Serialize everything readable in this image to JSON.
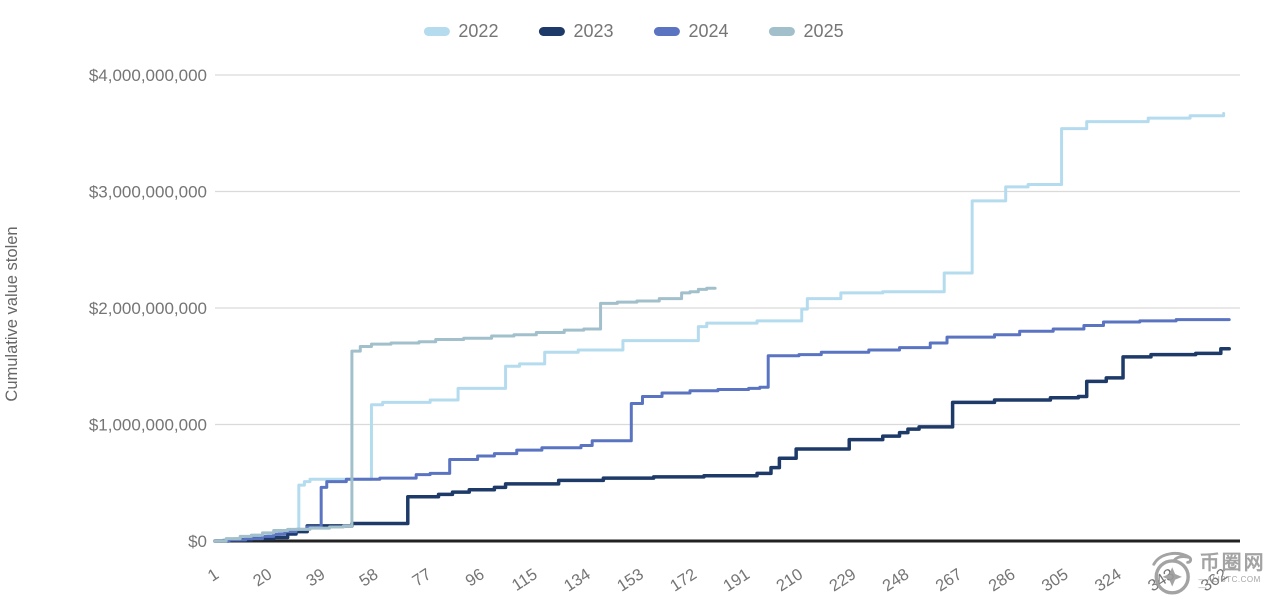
{
  "legend": {
    "items": [
      {
        "label": "2022",
        "color": "#b5dcee"
      },
      {
        "label": "2023",
        "color": "#1d3a68"
      },
      {
        "label": "2024",
        "color": "#5a74c2"
      },
      {
        "label": "2025",
        "color": "#a2c0cb"
      }
    ]
  },
  "y_axis": {
    "title": "Cumulative value stolen",
    "ticks": [
      {
        "label": "$4,000,000,000",
        "value": 4000000000
      },
      {
        "label": "$3,000,000,000",
        "value": 3000000000
      },
      {
        "label": "$2,000,000,000",
        "value": 2000000000
      },
      {
        "label": "$1,000,000,000",
        "value": 1000000000
      },
      {
        "label": "$0",
        "value": 0
      }
    ]
  },
  "x_axis": {
    "ticks": [
      {
        "label": "1",
        "day": 1
      },
      {
        "label": "20",
        "day": 20
      },
      {
        "label": "39",
        "day": 39
      },
      {
        "label": "58",
        "day": 58
      },
      {
        "label": "77",
        "day": 77
      },
      {
        "label": "96",
        "day": 96
      },
      {
        "label": "115",
        "day": 115
      },
      {
        "label": "134",
        "day": 134
      },
      {
        "label": "153",
        "day": 153
      },
      {
        "label": "172",
        "day": 172
      },
      {
        "label": "191",
        "day": 191
      },
      {
        "label": "210",
        "day": 210
      },
      {
        "label": "229",
        "day": 229
      },
      {
        "label": "248",
        "day": 248
      },
      {
        "label": "267",
        "day": 267
      },
      {
        "label": "286",
        "day": 286
      },
      {
        "label": "305",
        "day": 305
      },
      {
        "label": "324",
        "day": 324
      },
      {
        "label": "343",
        "day": 343
      },
      {
        "label": "362",
        "day": 362
      }
    ]
  },
  "watermark": {
    "site_name": "币圈网",
    "domain_text": "—ALIBTC.COM—"
  },
  "colors": {
    "grid": "#dadada",
    "baseline": "#222222",
    "tick_text": "#757575",
    "axis_title_text": "#666666",
    "watermark": "#9a9a9a"
  },
  "chart_data": {
    "type": "line",
    "step": true,
    "title": "",
    "xlabel": "",
    "ylabel": "Cumulative value stolen",
    "x_range": [
      1,
      365
    ],
    "y_range": [
      0,
      4000000000
    ],
    "grid": "horizontal",
    "legend_position": "top",
    "values_unit": "USD billions",
    "series": [
      {
        "name": "2022",
        "color": "#b5dcee",
        "points": [
          [
            1,
            0
          ],
          [
            4,
            0.01
          ],
          [
            8,
            0.02
          ],
          [
            12,
            0.03
          ],
          [
            16,
            0.04
          ],
          [
            20,
            0.05
          ],
          [
            24,
            0.07
          ],
          [
            28,
            0.09
          ],
          [
            31,
            0.48
          ],
          [
            33,
            0.51
          ],
          [
            35,
            0.53
          ],
          [
            57,
            1.17
          ],
          [
            61,
            1.19
          ],
          [
            78,
            1.21
          ],
          [
            88,
            1.31
          ],
          [
            105,
            1.5
          ],
          [
            110,
            1.52
          ],
          [
            119,
            1.62
          ],
          [
            131,
            1.64
          ],
          [
            147,
            1.72
          ],
          [
            174,
            1.84
          ],
          [
            177,
            1.87
          ],
          [
            195,
            1.89
          ],
          [
            211,
            1.99
          ],
          [
            213,
            2.08
          ],
          [
            225,
            2.13
          ],
          [
            240,
            2.14
          ],
          [
            262,
            2.3
          ],
          [
            272,
            2.92
          ],
          [
            284,
            3.04
          ],
          [
            292,
            3.06
          ],
          [
            304,
            3.54
          ],
          [
            313,
            3.6
          ],
          [
            335,
            3.63
          ],
          [
            350,
            3.65
          ],
          [
            362,
            3.67
          ]
        ]
      },
      {
        "name": "2023",
        "color": "#1d3a68",
        "points": [
          [
            1,
            0
          ],
          [
            6,
            0.01
          ],
          [
            14,
            0.02
          ],
          [
            22,
            0.03
          ],
          [
            27,
            0.06
          ],
          [
            30,
            0.08
          ],
          [
            34,
            0.13
          ],
          [
            50,
            0.15
          ],
          [
            70,
            0.38
          ],
          [
            81,
            0.4
          ],
          [
            86,
            0.42
          ],
          [
            92,
            0.44
          ],
          [
            101,
            0.46
          ],
          [
            105,
            0.49
          ],
          [
            124,
            0.52
          ],
          [
            140,
            0.54
          ],
          [
            158,
            0.55
          ],
          [
            176,
            0.56
          ],
          [
            195,
            0.58
          ],
          [
            200,
            0.63
          ],
          [
            203,
            0.71
          ],
          [
            209,
            0.79
          ],
          [
            228,
            0.87
          ],
          [
            240,
            0.9
          ],
          [
            246,
            0.93
          ],
          [
            249,
            0.96
          ],
          [
            253,
            0.98
          ],
          [
            265,
            1.19
          ],
          [
            280,
            1.21
          ],
          [
            300,
            1.23
          ],
          [
            310,
            1.24
          ],
          [
            313,
            1.37
          ],
          [
            320,
            1.4
          ],
          [
            326,
            1.58
          ],
          [
            336,
            1.6
          ],
          [
            352,
            1.61
          ],
          [
            361,
            1.65
          ],
          [
            364,
            1.65
          ]
        ]
      },
      {
        "name": "2024",
        "color": "#5a74c2",
        "points": [
          [
            1,
            0
          ],
          [
            6,
            0.01
          ],
          [
            12,
            0.02
          ],
          [
            18,
            0.04
          ],
          [
            22,
            0.06
          ],
          [
            26,
            0.08
          ],
          [
            30,
            0.1
          ],
          [
            34,
            0.12
          ],
          [
            39,
            0.46
          ],
          [
            41,
            0.51
          ],
          [
            48,
            0.53
          ],
          [
            60,
            0.54
          ],
          [
            73,
            0.57
          ],
          [
            78,
            0.58
          ],
          [
            85,
            0.7
          ],
          [
            95,
            0.73
          ],
          [
            101,
            0.75
          ],
          [
            109,
            0.78
          ],
          [
            118,
            0.8
          ],
          [
            132,
            0.82
          ],
          [
            136,
            0.86
          ],
          [
            150,
            1.18
          ],
          [
            154,
            1.24
          ],
          [
            161,
            1.27
          ],
          [
            171,
            1.29
          ],
          [
            181,
            1.3
          ],
          [
            192,
            1.31
          ],
          [
            196,
            1.32
          ],
          [
            199,
            1.59
          ],
          [
            210,
            1.6
          ],
          [
            218,
            1.62
          ],
          [
            235,
            1.64
          ],
          [
            246,
            1.66
          ],
          [
            257,
            1.7
          ],
          [
            263,
            1.75
          ],
          [
            280,
            1.77
          ],
          [
            289,
            1.8
          ],
          [
            301,
            1.82
          ],
          [
            312,
            1.85
          ],
          [
            319,
            1.88
          ],
          [
            332,
            1.89
          ],
          [
            345,
            1.9
          ],
          [
            364,
            1.9
          ]
        ]
      },
      {
        "name": "2025",
        "color": "#a2c0cb",
        "points": [
          [
            1,
            0
          ],
          [
            5,
            0.02
          ],
          [
            10,
            0.04
          ],
          [
            14,
            0.05
          ],
          [
            18,
            0.07
          ],
          [
            22,
            0.09
          ],
          [
            27,
            0.1
          ],
          [
            35,
            0.11
          ],
          [
            42,
            0.12
          ],
          [
            47,
            0.13
          ],
          [
            50,
            1.63
          ],
          [
            53,
            1.67
          ],
          [
            57,
            1.69
          ],
          [
            64,
            1.7
          ],
          [
            74,
            1.71
          ],
          [
            80,
            1.73
          ],
          [
            90,
            1.74
          ],
          [
            100,
            1.76
          ],
          [
            108,
            1.77
          ],
          [
            116,
            1.79
          ],
          [
            126,
            1.81
          ],
          [
            133,
            1.82
          ],
          [
            139,
            2.04
          ],
          [
            145,
            2.05
          ],
          [
            152,
            2.06
          ],
          [
            160,
            2.08
          ],
          [
            168,
            2.13
          ],
          [
            171,
            2.14
          ],
          [
            174,
            2.16
          ],
          [
            177,
            2.17
          ],
          [
            180,
            2.17
          ]
        ]
      }
    ]
  }
}
